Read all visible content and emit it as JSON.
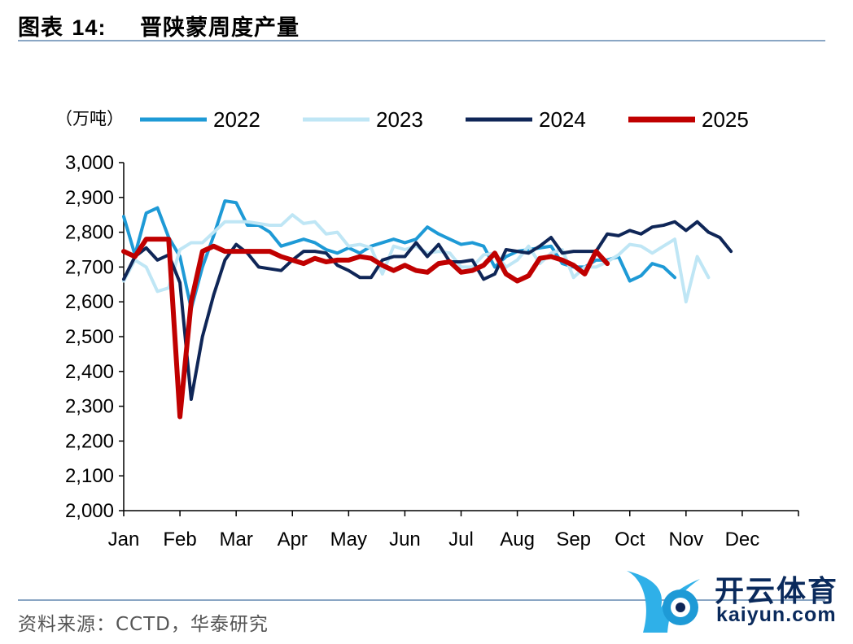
{
  "header": {
    "label": "图表",
    "number": "14:",
    "text": "晋陕蒙周度产量"
  },
  "source": "资料来源：CCTD，华泰研究",
  "watermark": {
    "cn": "开云体育",
    "en": "kaiyun.com"
  },
  "chart_data": {
    "type": "line",
    "unit": "（万吨）",
    "legend_position": "top",
    "ylim": [
      2000,
      3000
    ],
    "yticks": [
      "2,000",
      "2,100",
      "2,200",
      "2,300",
      "2,400",
      "2,500",
      "2,600",
      "2,700",
      "2,800",
      "2,900",
      "3,000"
    ],
    "ytick_values": [
      2000,
      2100,
      2200,
      2300,
      2400,
      2500,
      2600,
      2700,
      2800,
      2900,
      3000
    ],
    "x_max_week": 60,
    "months": [
      "Jan",
      "Feb",
      "Mar",
      "Apr",
      "May",
      "Jun",
      "Jul",
      "Aug",
      "Sep",
      "Oct",
      "Nov",
      "Dec"
    ],
    "month_start_week": [
      0,
      5,
      10,
      15,
      20,
      25,
      30,
      35,
      40,
      45,
      50,
      55
    ],
    "series": [
      {
        "name": "2022",
        "color": "#1e9ad6",
        "width": 4,
        "values": [
          2845,
          2735,
          2855,
          2870,
          2785,
          2730,
          2580,
          2700,
          2790,
          2890,
          2885,
          2820,
          2820,
          2800,
          2760,
          2770,
          2780,
          2770,
          2750,
          2740,
          2755,
          2740,
          2760,
          2770,
          2780,
          2770,
          2780,
          2815,
          2795,
          2780,
          2765,
          2770,
          2760,
          2700,
          2730,
          2745,
          2750,
          2755,
          2760,
          2710,
          2700,
          2700,
          2720,
          2720,
          2730,
          2660,
          2675,
          2710,
          2700,
          2670
        ]
      },
      {
        "name": "2023",
        "color": "#bfe6f5",
        "width": 4,
        "values": [
          2660,
          2720,
          2700,
          2630,
          2640,
          2750,
          2770,
          2770,
          2800,
          2830,
          2830,
          2830,
          2825,
          2820,
          2820,
          2850,
          2825,
          2830,
          2795,
          2800,
          2760,
          2765,
          2755,
          2680,
          2760,
          2750,
          2760,
          2740,
          2745,
          2740,
          2700,
          2700,
          2735,
          2740,
          2700,
          2720,
          2760,
          2710,
          2740,
          2750,
          2670,
          2700,
          2700,
          2715,
          2735,
          2765,
          2760,
          2740,
          2760,
          2780,
          2600,
          2730,
          2670
        ]
      },
      {
        "name": "2024",
        "color": "#0f2657",
        "width": 4,
        "values": [
          2665,
          2730,
          2755,
          2720,
          2735,
          2655,
          2320,
          2500,
          2620,
          2720,
          2765,
          2740,
          2700,
          2695,
          2690,
          2720,
          2745,
          2745,
          2740,
          2705,
          2690,
          2670,
          2670,
          2720,
          2730,
          2730,
          2770,
          2730,
          2765,
          2715,
          2715,
          2720,
          2665,
          2680,
          2750,
          2745,
          2740,
          2760,
          2785,
          2740,
          2745,
          2745,
          2745,
          2795,
          2790,
          2805,
          2795,
          2815,
          2820,
          2830,
          2805,
          2830,
          2800,
          2785,
          2745
        ]
      },
      {
        "name": "2025",
        "color": "#c00000",
        "width": 6,
        "values": [
          2745,
          2730,
          2780,
          2780,
          2780,
          2270,
          2600,
          2745,
          2760,
          2745,
          2745,
          2745,
          2745,
          2745,
          2730,
          2720,
          2710,
          2725,
          2715,
          2720,
          2720,
          2730,
          2725,
          2705,
          2690,
          2705,
          2690,
          2685,
          2710,
          2715,
          2685,
          2690,
          2705,
          2740,
          2680,
          2660,
          2675,
          2725,
          2730,
          2720,
          2705,
          2680,
          2745,
          2710
        ]
      }
    ]
  }
}
